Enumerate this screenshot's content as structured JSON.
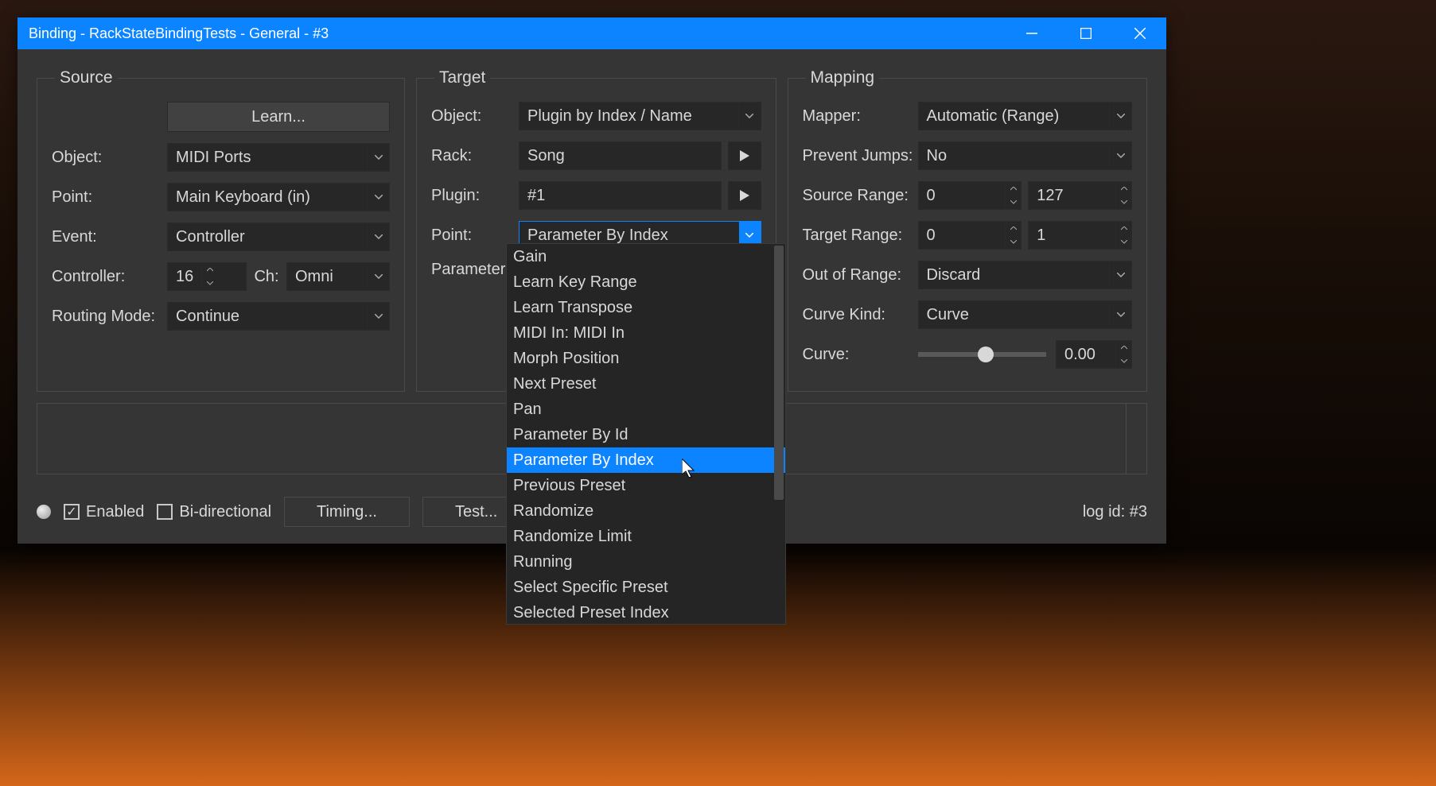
{
  "window": {
    "title": "Binding - RackStateBindingTests - General - #3"
  },
  "source": {
    "legend": "Source",
    "learn_btn": "Learn...",
    "object_label": "Object:",
    "object_value": "MIDI Ports",
    "point_label": "Point:",
    "point_value": "Main Keyboard (in)",
    "event_label": "Event:",
    "event_value": "Controller",
    "controller_label": "Controller:",
    "controller_value": "16",
    "ch_label": "Ch:",
    "ch_value": "Omni",
    "routing_label": "Routing Mode:",
    "routing_value": "Continue"
  },
  "target": {
    "legend": "Target",
    "object_label": "Object:",
    "object_value": "Plugin by Index / Name",
    "rack_label": "Rack:",
    "rack_value": "Song",
    "plugin_label": "Plugin:",
    "plugin_value": "#1",
    "point_label": "Point:",
    "point_value": "Parameter By Index",
    "parameter_label": "Parameter:",
    "dropdown": [
      "Gain",
      "Learn Key Range",
      "Learn Transpose",
      "MIDI In: MIDI In",
      "Morph Position",
      "Next Preset",
      "Pan",
      "Parameter By Id",
      "Parameter By Index",
      "Previous Preset",
      "Randomize",
      "Randomize Limit",
      "Running",
      "Select Specific Preset",
      "Selected Preset Index"
    ],
    "dropdown_highlighted_index": 8
  },
  "mapping": {
    "legend": "Mapping",
    "mapper_label": "Mapper:",
    "mapper_value": "Automatic (Range)",
    "prevent_label": "Prevent Jumps:",
    "prevent_value": "No",
    "src_range_label": "Source Range:",
    "src_range_lo": "0",
    "src_range_hi": "127",
    "tgt_range_label": "Target Range:",
    "tgt_range_lo": "0",
    "tgt_range_hi": "1",
    "oor_label": "Out of Range:",
    "oor_value": "Discard",
    "curvekind_label": "Curve Kind:",
    "curvekind_value": "Curve",
    "curve_label": "Curve:",
    "curve_value": "0.00"
  },
  "bottom": {
    "enabled_label": "Enabled",
    "bidir_label": "Bi-directional",
    "timing_btn": "Timing...",
    "test_btn": "Test...",
    "logid": "log id: #3"
  }
}
